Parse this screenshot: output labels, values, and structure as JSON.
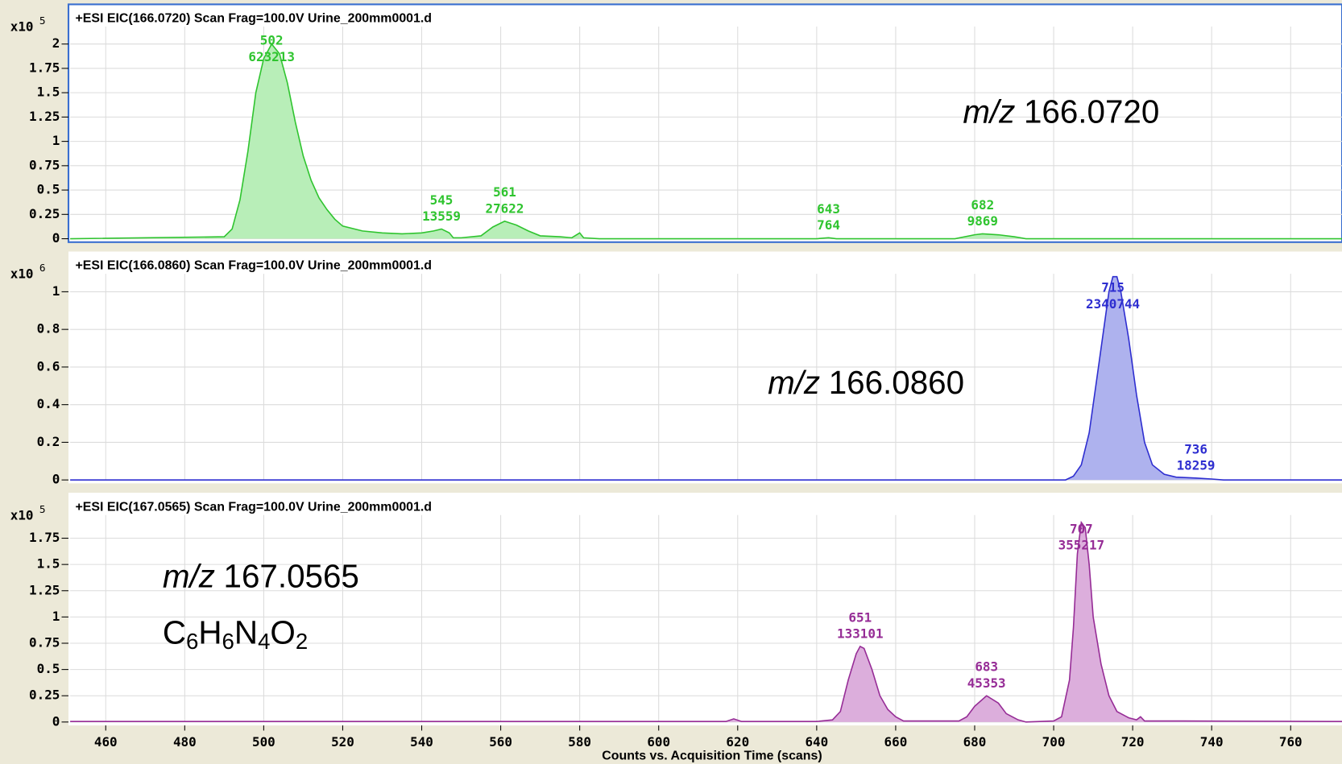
{
  "chart_data": [
    {
      "type": "area",
      "title": "+ESI EIC(166.0720) Scan Frag=100.0V Urine_200mm0001.d",
      "ymultiplier": "x10",
      "yexponent": 5,
      "label": {
        "italic": "m/z",
        "text": "166.0720"
      },
      "xlim": [
        451,
        773
      ],
      "ylim": [
        0,
        2.39
      ],
      "yticks": [
        0,
        0.25,
        0.5,
        0.75,
        1,
        1.25,
        1.5,
        1.75,
        2
      ],
      "color": "#2fc42f",
      "fill": "#b8eeb8",
      "x": [
        451,
        490,
        492,
        494,
        496,
        498,
        500,
        502,
        504,
        506,
        508,
        510,
        512,
        514,
        516,
        518,
        520,
        525,
        530,
        535,
        540,
        543,
        545,
        547,
        548,
        550,
        555,
        558,
        561,
        564,
        567,
        570,
        575,
        578,
        580,
        581,
        585,
        640,
        643,
        645,
        675,
        680,
        682,
        686,
        690,
        693,
        773
      ],
      "values": [
        0,
        0.02,
        0.1,
        0.4,
        0.9,
        1.5,
        1.85,
        2.0,
        1.9,
        1.6,
        1.2,
        0.85,
        0.6,
        0.42,
        0.3,
        0.2,
        0.13,
        0.08,
        0.06,
        0.05,
        0.06,
        0.08,
        0.1,
        0.06,
        0.01,
        0.01,
        0.03,
        0.12,
        0.18,
        0.14,
        0.08,
        0.03,
        0.02,
        0.01,
        0.06,
        0.01,
        0,
        0,
        0.01,
        0,
        0,
        0.04,
        0.05,
        0.04,
        0.02,
        0,
        0
      ],
      "peaks": [
        {
          "x": 502,
          "area": 623213
        },
        {
          "x": 545,
          "area": 13559
        },
        {
          "x": 561,
          "area": 27622
        },
        {
          "x": 643,
          "area": 764
        },
        {
          "x": 682,
          "area": 9869
        }
      ]
    },
    {
      "type": "area",
      "title": "+ESI EIC(166.0860) Scan Frag=100.0V Urine_200mm0001.d",
      "ymultiplier": "x10",
      "yexponent": 6,
      "label": {
        "italic": "m/z",
        "text": "166.0860"
      },
      "xlim": [
        451,
        773
      ],
      "ylim": [
        0,
        1.2
      ],
      "yticks": [
        0,
        0.2,
        0.4,
        0.6,
        0.8,
        1
      ],
      "color": "#2e2ed0",
      "fill": "#aeb2ee",
      "x": [
        451,
        703,
        705,
        707,
        709,
        711,
        713,
        714,
        715,
        716,
        717,
        719,
        721,
        723,
        725,
        728,
        731,
        736,
        740,
        743,
        773
      ],
      "values": [
        0,
        0,
        0.02,
        0.08,
        0.25,
        0.55,
        0.85,
        1.0,
        1.08,
        1.08,
        1.0,
        0.75,
        0.45,
        0.2,
        0.08,
        0.03,
        0.015,
        0.01,
        0.005,
        0,
        0
      ],
      "peaks": [
        {
          "x": 715,
          "area": 2340744
        },
        {
          "x": 736,
          "area": 18259
        }
      ]
    },
    {
      "type": "area",
      "title": "+ESI EIC(167.0565) Scan Frag=100.0V Urine_200mm0001.d",
      "ymultiplier": "x10",
      "yexponent": 5,
      "label": {
        "italic": "m/z",
        "text": "167.0565"
      },
      "formula": "C6H6N4O2",
      "xlabel": "Counts vs. Acquisition Time (scans)",
      "xlim": [
        451,
        773
      ],
      "ylim": [
        0,
        2.15
      ],
      "xticks": [
        460,
        480,
        500,
        520,
        540,
        560,
        580,
        600,
        620,
        640,
        660,
        680,
        700,
        720,
        740,
        760
      ],
      "yticks": [
        0,
        0.25,
        0.5,
        0.75,
        1,
        1.25,
        1.5,
        1.75
      ],
      "color": "#962c96",
      "fill": "#dcaedc",
      "x": [
        451,
        617,
        619,
        621,
        640,
        644,
        646,
        648,
        650,
        651,
        652,
        654,
        656,
        658,
        660,
        662,
        676,
        678,
        680,
        683,
        686,
        688,
        691,
        693,
        700,
        702,
        704,
        705,
        706,
        707,
        708,
        709,
        710,
        712,
        714,
        716,
        719,
        721,
        722,
        723,
        730,
        733,
        773
      ],
      "values": [
        0.005,
        0.005,
        0.03,
        0.005,
        0.005,
        0.02,
        0.1,
        0.4,
        0.65,
        0.72,
        0.7,
        0.5,
        0.25,
        0.12,
        0.05,
        0.01,
        0.01,
        0.05,
        0.15,
        0.25,
        0.18,
        0.08,
        0.02,
        0,
        0.01,
        0.05,
        0.4,
        0.9,
        1.6,
        1.9,
        1.85,
        1.5,
        1.0,
        0.55,
        0.25,
        0.1,
        0.04,
        0.02,
        0.05,
        0.01,
        0.01,
        0.01,
        0.005
      ],
      "peaks": [
        {
          "x": 651,
          "area": 133101
        },
        {
          "x": 683,
          "area": 45353
        },
        {
          "x": 707,
          "area": 355217
        }
      ]
    }
  ]
}
